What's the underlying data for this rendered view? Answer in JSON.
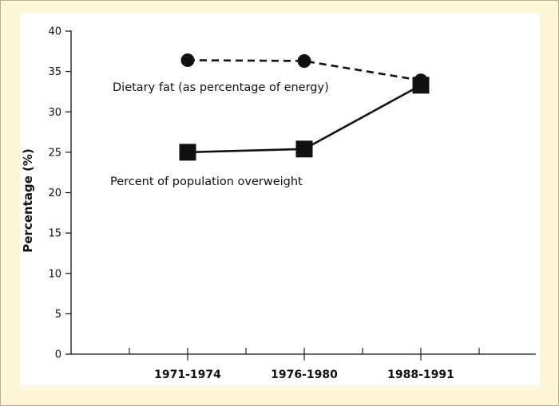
{
  "chart_data": {
    "type": "line",
    "title": "",
    "xlabel": "",
    "ylabel": "Percentage (%)",
    "ylim": [
      0,
      40
    ],
    "yticks": [
      0,
      5,
      10,
      15,
      20,
      25,
      30,
      35,
      40
    ],
    "categories": [
      "1971-1974",
      "1976-1980",
      "1988-1991"
    ],
    "series": [
      {
        "name": "Dietary fat (as percentage of energy)",
        "values": [
          36.4,
          36.3,
          33.9
        ],
        "marker": "circle",
        "line_style": "dashed",
        "color": "#111111"
      },
      {
        "name": "Percent of population overweight",
        "values": [
          25.0,
          25.4,
          33.3
        ],
        "marker": "square",
        "line_style": "solid",
        "color": "#111111"
      }
    ],
    "grid": false,
    "legend": "annotations-near-lines"
  }
}
